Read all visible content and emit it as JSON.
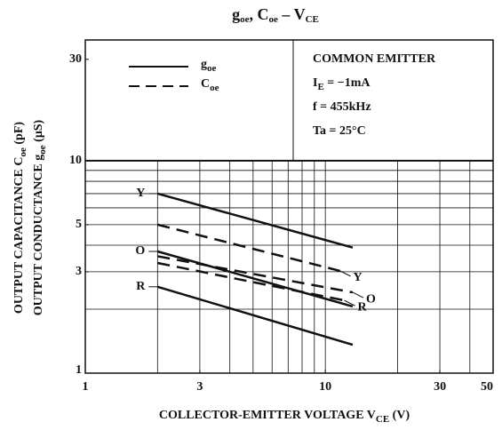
{
  "chart_data": {
    "type": "line",
    "title": [
      {
        "t": "g"
      },
      {
        "t": "oe",
        "sub": true
      },
      {
        "t": ", C"
      },
      {
        "t": "oe",
        "sub": true
      },
      {
        "t": " – V"
      },
      {
        "t": "CE",
        "sub": true
      }
    ],
    "x_label": [
      {
        "t": "COLLECTOR-EMITTER   VOLTAGE   V"
      },
      {
        "t": "CE",
        "sub": true
      },
      {
        "t": " (V)"
      }
    ],
    "y_label": [
      [
        {
          "t": "OUTPUT CAPACITANCE   C"
        },
        {
          "t": "oe",
          "sub": true
        },
        {
          "t": "   (pF)"
        }
      ],
      [
        {
          "t": "OUTPUT CONDUCTANCE   g"
        },
        {
          "t": "oe",
          "sub": true
        },
        {
          "t": "   (μS)"
        }
      ]
    ],
    "log_x": true,
    "log_y": true,
    "xlim": [
      1,
      50
    ],
    "ylim": [
      1,
      37
    ],
    "xticks": [
      1,
      3,
      10,
      30,
      50
    ],
    "yticks": [
      1,
      3,
      5,
      10,
      30
    ],
    "xgrid": [
      2,
      3,
      4,
      5,
      6,
      7,
      8,
      9,
      10,
      20,
      30,
      40
    ],
    "ygrid": [
      2,
      3,
      4,
      5,
      6,
      7,
      8,
      9,
      10
    ],
    "color": "#111111",
    "legend": [
      {
        "label": [
          {
            "t": "g"
          },
          {
            "t": "oe",
            "sub": true
          }
        ],
        "dash": false
      },
      {
        "label": [
          {
            "t": "C"
          },
          {
            "t": "oe",
            "sub": true
          }
        ],
        "dash": true
      }
    ],
    "conditions": [
      [
        {
          "t": "COMMON EMITTER"
        }
      ],
      [
        {
          "t": "I"
        },
        {
          "t": "E",
          "sub": true
        },
        {
          "t": " = −1mA"
        }
      ],
      [
        {
          "t": "f = 455kHz"
        }
      ],
      [
        {
          "t": "Ta = 25°C"
        }
      ]
    ],
    "series": [
      {
        "name": "Y",
        "dash": false,
        "label_side": "left",
        "x": [
          2,
          13
        ],
        "values": [
          7,
          3.9
        ]
      },
      {
        "name": "Y",
        "dash": true,
        "label_side": "right",
        "x": [
          2,
          11.5
        ],
        "values": [
          5,
          3.03
        ]
      },
      {
        "name": "O",
        "dash": false,
        "label_side": "left",
        "x": [
          2,
          13
        ],
        "values": [
          3.74,
          2.06
        ]
      },
      {
        "name": "O",
        "dash": true,
        "label_side": "right",
        "x": [
          2,
          13
        ],
        "values": [
          3.55,
          2.4
        ]
      },
      {
        "name": "R",
        "dash": true,
        "label_side": "right",
        "x": [
          2,
          12
        ],
        "values": [
          3.3,
          2.2
        ]
      },
      {
        "name": "R",
        "dash": false,
        "label_side": "left",
        "x": [
          2,
          13
        ],
        "values": [
          2.55,
          1.36
        ]
      }
    ]
  }
}
